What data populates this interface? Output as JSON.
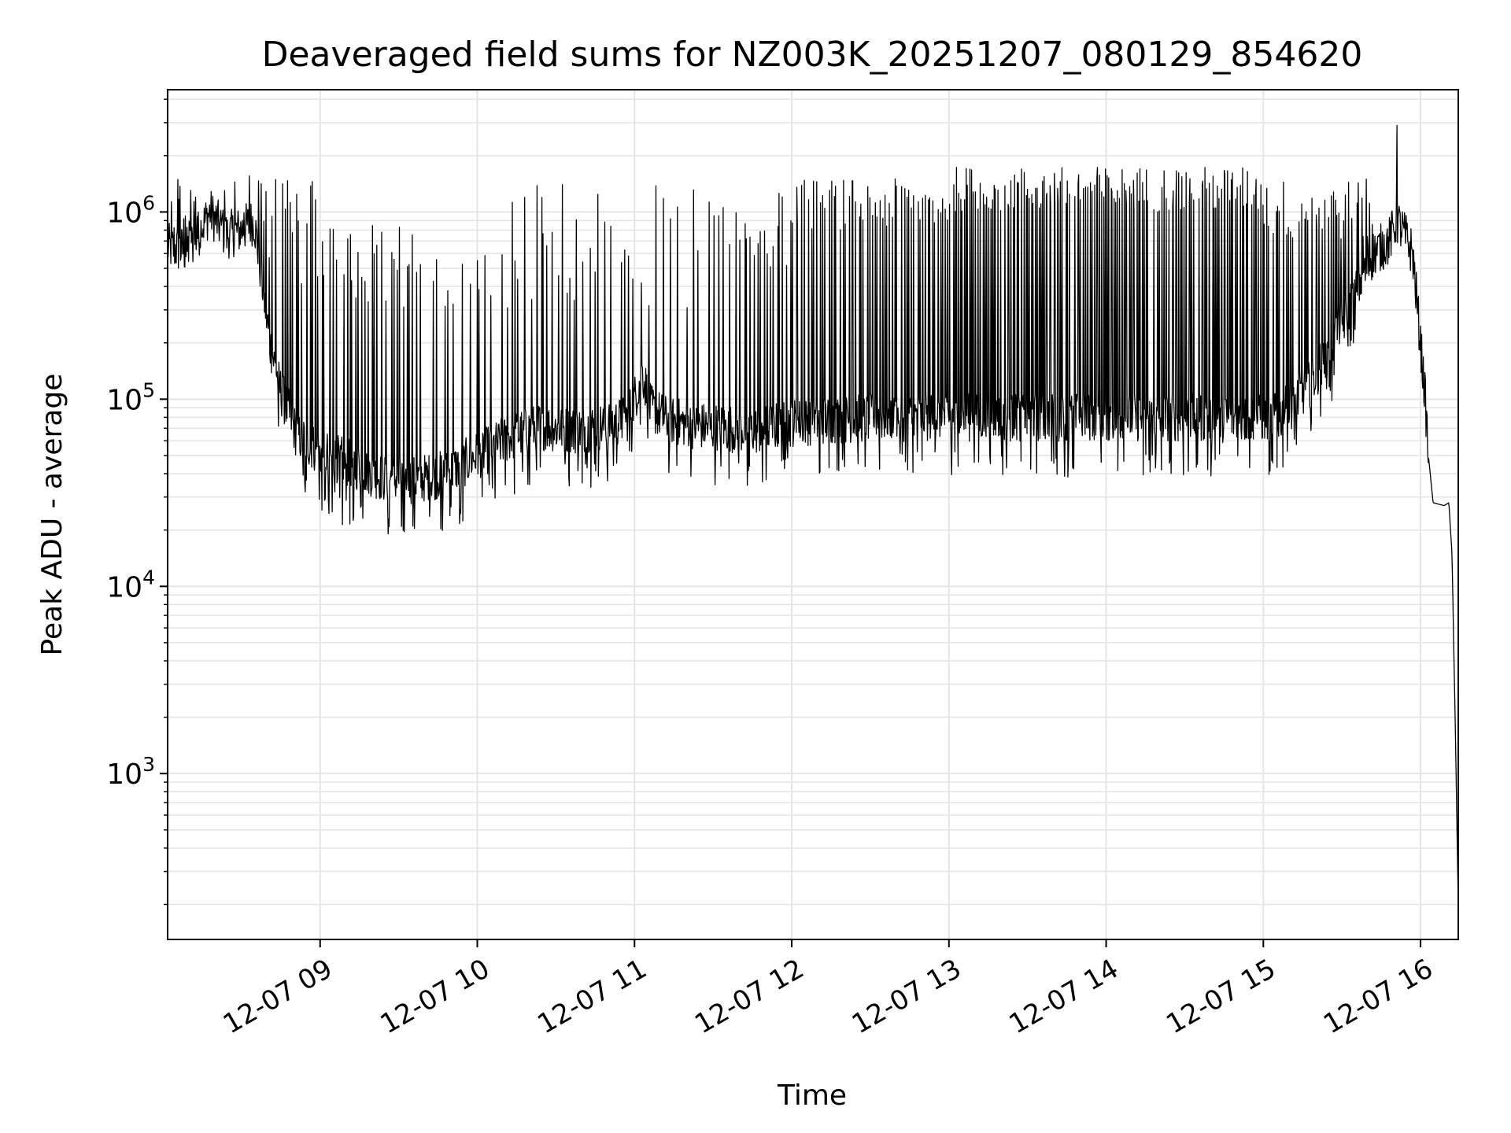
{
  "chart_data": {
    "type": "line",
    "title": "Deaveraged field sums for NZ003K_20251207_080129_854620",
    "xlabel": "Time",
    "ylabel": "Peak ADU - average",
    "yscale": "log",
    "grid": true,
    "grid_color": "#e5e5e5",
    "line_color": "#000000",
    "xlim": [
      8.03,
      16.24
    ],
    "ylim": [
      130,
      4500000
    ],
    "x_unit": "hours since 2025-12-07 00:00",
    "x_ticks": [
      {
        "value": 9,
        "label": "12-07 09"
      },
      {
        "value": 10,
        "label": "12-07 10"
      },
      {
        "value": 11,
        "label": "12-07 11"
      },
      {
        "value": 12,
        "label": "12-07 12"
      },
      {
        "value": 13,
        "label": "12-07 13"
      },
      {
        "value": 14,
        "label": "12-07 14"
      },
      {
        "value": 15,
        "label": "12-07 15"
      },
      {
        "value": 16,
        "label": "12-07 16"
      }
    ],
    "y_ticks": [
      {
        "value": 1000,
        "base": "10",
        "exp": "3"
      },
      {
        "value": 10000,
        "base": "10",
        "exp": "4"
      },
      {
        "value": 100000,
        "base": "10",
        "exp": "5"
      },
      {
        "value": 1000000,
        "base": "10",
        "exp": "6"
      }
    ],
    "series": [
      {
        "name": "Peak ADU - average",
        "baseline": [
          [
            8.03,
            650000
          ],
          [
            8.15,
            620000
          ],
          [
            8.2,
            700000
          ],
          [
            8.3,
            1000000
          ],
          [
            8.4,
            750000
          ],
          [
            8.5,
            800000
          ],
          [
            8.58,
            900000
          ],
          [
            8.62,
            500000
          ],
          [
            8.68,
            200000
          ],
          [
            8.75,
            110000
          ],
          [
            8.85,
            65000
          ],
          [
            9.0,
            52000
          ],
          [
            9.2,
            45000
          ],
          [
            9.4,
            38000
          ],
          [
            9.6,
            37000
          ],
          [
            9.8,
            40000
          ],
          [
            10.0,
            50000
          ],
          [
            10.2,
            62000
          ],
          [
            10.4,
            72000
          ],
          [
            10.6,
            68000
          ],
          [
            10.8,
            72000
          ],
          [
            10.95,
            78000
          ],
          [
            11.0,
            100000
          ],
          [
            11.05,
            140000
          ],
          [
            11.1,
            90000
          ],
          [
            11.2,
            78000
          ],
          [
            11.4,
            72000
          ],
          [
            11.6,
            70000
          ],
          [
            11.8,
            68000
          ],
          [
            12.0,
            75000
          ],
          [
            12.3,
            78000
          ],
          [
            12.6,
            80000
          ],
          [
            13.0,
            80000
          ],
          [
            13.4,
            80000
          ],
          [
            13.8,
            80000
          ],
          [
            14.2,
            80000
          ],
          [
            14.6,
            80000
          ],
          [
            14.9,
            78000
          ],
          [
            15.1,
            80000
          ],
          [
            15.3,
            120000
          ],
          [
            15.5,
            250000
          ],
          [
            15.6,
            400000
          ],
          [
            15.7,
            600000
          ],
          [
            15.8,
            700000
          ],
          [
            15.85,
            900000
          ],
          [
            15.9,
            750000
          ],
          [
            15.95,
            600000
          ],
          [
            16.0,
            200000
          ],
          [
            16.03,
            100000
          ],
          [
            16.05,
            50000
          ],
          [
            16.08,
            28000
          ],
          [
            16.15,
            27000
          ],
          [
            16.18,
            28000
          ],
          [
            16.2,
            15000
          ],
          [
            16.22,
            2000
          ],
          [
            16.24,
            200
          ]
        ],
        "spikes": [
          {
            "from": 8.03,
            "to": 8.55,
            "count": 40,
            "min": 500000,
            "max": 1600000
          },
          {
            "from": 8.6,
            "to": 9.0,
            "count": 22,
            "min": 400000,
            "max": 1500000
          },
          {
            "from": 9.0,
            "to": 9.6,
            "count": 30,
            "min": 300000,
            "max": 900000
          },
          {
            "from": 9.6,
            "to": 10.2,
            "count": 18,
            "min": 300000,
            "max": 600000
          },
          {
            "from": 10.2,
            "to": 11.0,
            "count": 30,
            "min": 300000,
            "max": 1500000
          },
          {
            "from": 11.0,
            "to": 11.5,
            "count": 10,
            "min": 300000,
            "max": 1500000
          },
          {
            "from": 11.5,
            "to": 12.0,
            "count": 24,
            "min": 500000,
            "max": 1300000
          },
          {
            "from": 12.0,
            "to": 13.0,
            "count": 62,
            "min": 800000,
            "max": 1500000
          },
          {
            "from": 13.0,
            "to": 15.0,
            "count": 170,
            "min": 1000000,
            "max": 1750000
          },
          {
            "from": 15.0,
            "to": 15.7,
            "count": 50,
            "min": 700000,
            "max": 1500000
          }
        ],
        "dips": [
          {
            "from": 8.7,
            "to": 15.6,
            "count": 180,
            "depth_factor": 0.6
          },
          {
            "from": 9.1,
            "to": 9.25,
            "count": 4,
            "depth_factor": 0.5
          }
        ],
        "peak": {
          "x": 15.85,
          "y": 2900000
        }
      }
    ]
  }
}
